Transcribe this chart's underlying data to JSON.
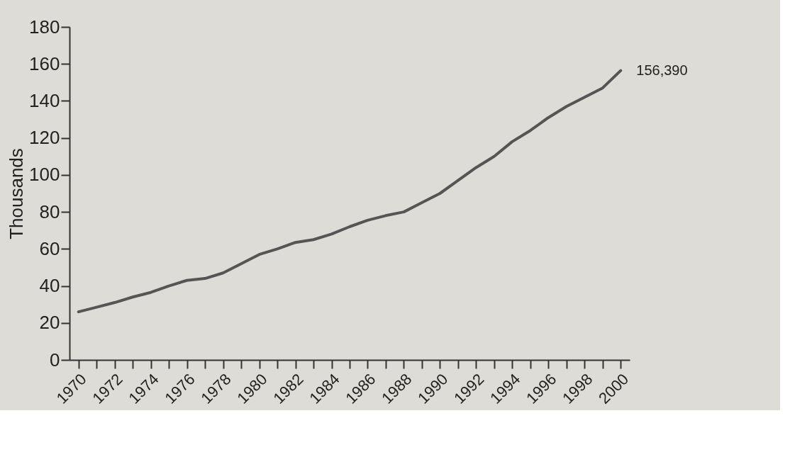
{
  "chart_data": {
    "type": "line",
    "ylabel": "Thousands",
    "categories": [
      "1970",
      null,
      "1972",
      null,
      "1974",
      null,
      "1976",
      null,
      "1978",
      null,
      "1980",
      null,
      "1982",
      null,
      "1984",
      null,
      "1986",
      null,
      "1988",
      null,
      "1990",
      null,
      "1992",
      null,
      "1994",
      null,
      "1996",
      null,
      "1998",
      null,
      "2000"
    ],
    "series": [
      {
        "color": "#555555",
        "values": [
          26,
          28.5,
          31,
          34,
          36.5,
          40,
          43,
          44,
          47,
          52,
          57,
          60,
          63.5,
          65,
          68,
          72,
          75.5,
          78,
          80,
          85,
          90,
          97,
          104,
          110,
          118,
          124,
          131,
          137,
          142,
          147,
          156.4
        ]
      }
    ],
    "annotations": [
      {
        "text": "156,390",
        "x": "2000",
        "y": 156.4
      }
    ],
    "ylim": [
      0,
      180
    ],
    "yticks": [
      0,
      20,
      40,
      60,
      80,
      100,
      120,
      140,
      160,
      180
    ],
    "grid": false,
    "marker": "none",
    "line_style": "solid"
  }
}
